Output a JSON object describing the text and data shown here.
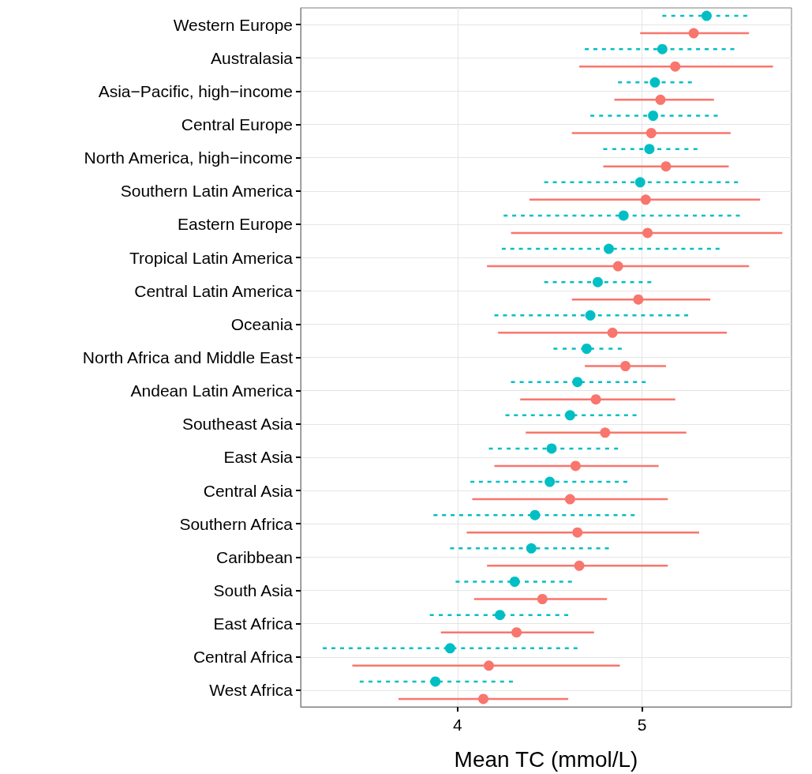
{
  "chart_data": {
    "type": "scatter",
    "orientation": "horizontal",
    "xlabel": "Mean TC (mmol/L)",
    "categories": [
      "Western Europe",
      "Australasia",
      "Asia−Pacific, high−income",
      "Central Europe",
      "North America, high−income",
      "Southern Latin America",
      "Eastern Europe",
      "Tropical Latin America",
      "Central Latin America",
      "Oceania",
      "North Africa and Middle East",
      "Andean Latin America",
      "Southeast Asia",
      "East Asia",
      "Central Asia",
      "Southern Africa",
      "Caribbean",
      "South Asia",
      "East Africa",
      "Central Africa",
      "West Africa"
    ],
    "series": [
      {
        "color": "#00bfc4",
        "line_style": "dashed",
        "values": [
          5.35,
          5.11,
          5.07,
          5.06,
          5.04,
          4.99,
          4.9,
          4.82,
          4.76,
          4.72,
          4.7,
          4.65,
          4.61,
          4.51,
          4.5,
          4.42,
          4.4,
          4.31,
          4.23,
          3.96,
          3.88
        ],
        "errors": [
          [
            5.11,
            5.57
          ],
          [
            4.69,
            5.5
          ],
          [
            4.87,
            5.27
          ],
          [
            4.72,
            5.41
          ],
          [
            4.79,
            5.3
          ],
          [
            4.47,
            5.52
          ],
          [
            4.25,
            5.53
          ],
          [
            4.24,
            5.42
          ],
          [
            4.47,
            5.05
          ],
          [
            4.2,
            5.25
          ],
          [
            4.52,
            4.89
          ],
          [
            4.29,
            5.02
          ],
          [
            4.26,
            4.97
          ],
          [
            4.17,
            4.87
          ],
          [
            4.07,
            4.92
          ],
          [
            3.87,
            4.96
          ],
          [
            3.96,
            4.82
          ],
          [
            3.99,
            4.62
          ],
          [
            3.85,
            4.6
          ],
          [
            3.27,
            4.65
          ],
          [
            3.47,
            4.3
          ]
        ]
      },
      {
        "color": "#f8766d",
        "line_style": "solid",
        "values": [
          5.28,
          5.18,
          5.1,
          5.05,
          5.13,
          5.02,
          5.03,
          4.87,
          4.98,
          4.84,
          4.91,
          4.75,
          4.8,
          4.64,
          4.61,
          4.65,
          4.66,
          4.46,
          4.32,
          4.17,
          4.14
        ],
        "errors": [
          [
            4.99,
            5.58
          ],
          [
            4.66,
            5.71
          ],
          [
            4.85,
            5.39
          ],
          [
            4.62,
            5.48
          ],
          [
            4.79,
            5.47
          ],
          [
            4.39,
            5.64
          ],
          [
            4.29,
            5.76
          ],
          [
            4.16,
            5.58
          ],
          [
            4.62,
            5.37
          ],
          [
            4.22,
            5.46
          ],
          [
            4.69,
            5.13
          ],
          [
            4.34,
            5.18
          ],
          [
            4.37,
            5.24
          ],
          [
            4.2,
            5.09
          ],
          [
            4.08,
            5.14
          ],
          [
            4.05,
            5.31
          ],
          [
            4.16,
            5.14
          ],
          [
            4.09,
            4.81
          ],
          [
            3.91,
            4.74
          ],
          [
            3.43,
            4.88
          ],
          [
            3.68,
            4.6
          ]
        ]
      }
    ],
    "xlim": [
      3.15,
      5.81
    ],
    "xticks": [
      4,
      5
    ],
    "grid": true,
    "marker": "circle"
  }
}
